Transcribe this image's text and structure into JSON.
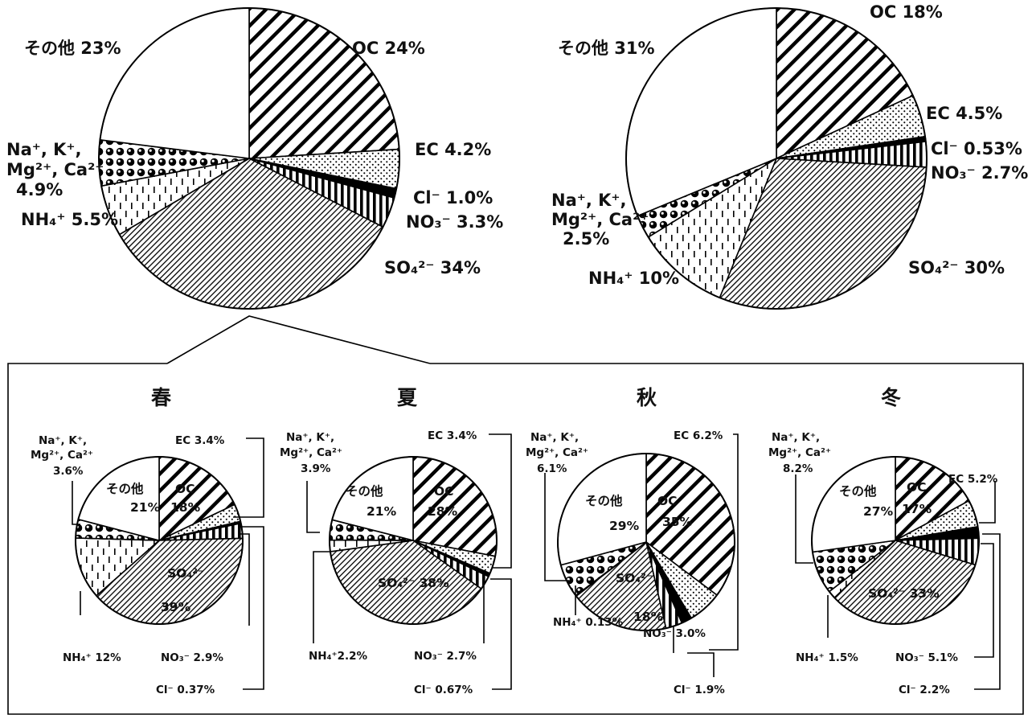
{
  "chart_data": [
    {
      "type": "pie",
      "title": "",
      "slices": [
        {
          "name": "OC",
          "value": 24,
          "label": "OC 24%",
          "pattern": "diag-bold"
        },
        {
          "name": "EC",
          "value": 4.2,
          "label": "EC 4.2%",
          "pattern": "dots"
        },
        {
          "name": "Cl-",
          "value": 1.0,
          "label": "Cl⁻ 1.0%",
          "pattern": "solid"
        },
        {
          "name": "NO3-",
          "value": 3.3,
          "label": "NO₃⁻ 3.3%",
          "pattern": "vlines"
        },
        {
          "name": "SO4 2-",
          "value": 34,
          "label": "SO₄²⁻ 34%",
          "pattern": "diag-fine"
        },
        {
          "name": "NH4+",
          "value": 5.5,
          "label": "NH₄⁺ 5.5%",
          "pattern": "dash-v"
        },
        {
          "name": "Na+, K+, Mg2+, Ca2+",
          "value": 4.9,
          "label": "Na⁺, K⁺, Mg²⁺, Ca²⁺ 4.9%",
          "pattern": "circles"
        },
        {
          "name": "その他",
          "value": 23,
          "label": "その他 23%",
          "pattern": "white"
        }
      ]
    },
    {
      "type": "pie",
      "title": "",
      "slices": [
        {
          "name": "OC",
          "value": 18,
          "label": "OC 18%",
          "pattern": "diag-bold"
        },
        {
          "name": "EC",
          "value": 4.5,
          "label": "EC 4.5%",
          "pattern": "dots"
        },
        {
          "name": "Cl-",
          "value": 0.53,
          "label": "Cl⁻ 0.53%",
          "pattern": "solid"
        },
        {
          "name": "NO3-",
          "value": 2.7,
          "label": "NO₃⁻ 2.7%",
          "pattern": "vlines"
        },
        {
          "name": "SO4 2-",
          "value": 30,
          "label": "SO₄²⁻ 30%",
          "pattern": "diag-fine"
        },
        {
          "name": "NH4+",
          "value": 10,
          "label": "NH₄⁺ 10%",
          "pattern": "dash-v"
        },
        {
          "name": "Na+, K+, Mg2+, Ca2+",
          "value": 2.5,
          "label": "Na⁺, K⁺, Mg²⁺, Ca²⁺ 2.5%",
          "pattern": "circles"
        },
        {
          "name": "その他",
          "value": 31,
          "label": "その他 31%",
          "pattern": "white"
        }
      ]
    },
    {
      "type": "pie",
      "title": "春",
      "slices": [
        {
          "name": "OC",
          "value": 18,
          "label": "OC 18%",
          "pattern": "diag-bold"
        },
        {
          "name": "EC",
          "value": 3.4,
          "label": "EC 3.4%",
          "pattern": "dots"
        },
        {
          "name": "Cl-",
          "value": 0.37,
          "label": "Cl⁻ 0.37%",
          "pattern": "solid"
        },
        {
          "name": "NO3-",
          "value": 2.9,
          "label": "NO₃⁻ 2.9%",
          "pattern": "vlines"
        },
        {
          "name": "SO4 2-",
          "value": 39,
          "label": "SO₄²⁻ 39%",
          "pattern": "diag-fine"
        },
        {
          "name": "NH4+",
          "value": 12,
          "label": "NH₄⁺ 12%",
          "pattern": "dash-v"
        },
        {
          "name": "Na+, K+, Mg2+, Ca2+",
          "value": 3.6,
          "label": "Na⁺, K⁺, Mg²⁺, Ca²⁺ 3.6%",
          "pattern": "circles"
        },
        {
          "name": "その他",
          "value": 21,
          "label": "その他 21%",
          "pattern": "white"
        }
      ]
    },
    {
      "type": "pie",
      "title": "夏",
      "slices": [
        {
          "name": "OC",
          "value": 28,
          "label": "OC 28%",
          "pattern": "diag-bold"
        },
        {
          "name": "EC",
          "value": 3.4,
          "label": "EC 3.4%",
          "pattern": "dots"
        },
        {
          "name": "Cl-",
          "value": 0.67,
          "label": "Cl⁻ 0.67%",
          "pattern": "solid"
        },
        {
          "name": "NO3-",
          "value": 2.7,
          "label": "NO₃⁻ 2.7%",
          "pattern": "vlines"
        },
        {
          "name": "SO4 2-",
          "value": 38,
          "label": "SO₄²⁻ 38%",
          "pattern": "diag-fine"
        },
        {
          "name": "NH4+",
          "value": 2.2,
          "label": "NH₄⁺2.2%",
          "pattern": "dash-v"
        },
        {
          "name": "Na+, K+, Mg2+, Ca2+",
          "value": 3.9,
          "label": "Na⁺, K⁺, Mg²⁺, Ca²⁺ 3.9%",
          "pattern": "circles"
        },
        {
          "name": "その他",
          "value": 21,
          "label": "その他 21%",
          "pattern": "white"
        }
      ]
    },
    {
      "type": "pie",
      "title": "秋",
      "slices": [
        {
          "name": "OC",
          "value": 35,
          "label": "OC 35%",
          "pattern": "diag-bold"
        },
        {
          "name": "EC",
          "value": 6.2,
          "label": "EC 6.2%",
          "pattern": "dots"
        },
        {
          "name": "Cl-",
          "value": 1.9,
          "label": "Cl⁻ 1.9%",
          "pattern": "solid"
        },
        {
          "name": "NO3-",
          "value": 3.0,
          "label": "NO₃⁻ 3.0%",
          "pattern": "vlines"
        },
        {
          "name": "SO4 2-",
          "value": 18,
          "label": "SO₄²⁻ 18%",
          "pattern": "diag-fine"
        },
        {
          "name": "NH4+",
          "value": 0.13,
          "label": "NH₄⁺ 0.13%",
          "pattern": "dash-v"
        },
        {
          "name": "Na+, K+, Mg2+, Ca2+",
          "value": 6.1,
          "label": "Na⁺, K⁺, Mg²⁺, Ca²⁺ 6.1%",
          "pattern": "circles"
        },
        {
          "name": "その他",
          "value": 29,
          "label": "その他 29%",
          "pattern": "white"
        }
      ]
    },
    {
      "type": "pie",
      "title": "冬",
      "slices": [
        {
          "name": "OC",
          "value": 17,
          "label": "OC 17%",
          "pattern": "diag-bold"
        },
        {
          "name": "EC",
          "value": 5.2,
          "label": "EC 5.2%",
          "pattern": "dots"
        },
        {
          "name": "Cl-",
          "value": 2.2,
          "label": "Cl⁻ 2.2%",
          "pattern": "solid"
        },
        {
          "name": "NO3-",
          "value": 5.1,
          "label": "NO₃⁻ 5.1%",
          "pattern": "vlines"
        },
        {
          "name": "SO4 2-",
          "value": 33,
          "label": "SO₄²⁻ 33%",
          "pattern": "diag-fine"
        },
        {
          "name": "NH4+",
          "value": 1.5,
          "label": "NH₄⁺ 1.5%",
          "pattern": "dash-v"
        },
        {
          "name": "Na+, K+, Mg2+, Ca2+",
          "value": 8.2,
          "label": "Na⁺, K⁺, Mg²⁺, Ca²⁺ 8.2%",
          "pattern": "circles"
        },
        {
          "name": "その他",
          "value": 27,
          "label": "その他 27%",
          "pattern": "white"
        }
      ]
    }
  ],
  "labels": {
    "p1": {
      "oc": "OC 24%",
      "ec": "EC 4.2%",
      "cl": "Cl⁻ 1.0%",
      "no3": "NO₃⁻ 3.3%",
      "so4": "SO₄²⁻ 34%",
      "nh4": "NH₄⁺ 5.5%",
      "na_1": "Na⁺, K⁺,",
      "na_2": "Mg²⁺, Ca²⁺",
      "na_val": "4.9%",
      "other": "その他 23%"
    },
    "p2": {
      "oc": "OC 18%",
      "ec": "EC 4.5%",
      "cl": "Cl⁻ 0.53%",
      "no3": "NO₃⁻ 2.7%",
      "so4": "SO₄²⁻ 30%",
      "nh4": "NH₄⁺ 10%",
      "na_1": "Na⁺, K⁺,",
      "na_2": "Mg²⁺, Ca²⁺",
      "na_val": "2.5%",
      "other": "その他 31%"
    },
    "spring": {
      "title": "春",
      "na_1": "Na⁺, K⁺,",
      "na_2": "Mg²⁺, Ca²⁺",
      "na_val": "3.6%",
      "ec": "EC 3.4%",
      "other_1": "その他",
      "other_2": "21%",
      "oc_1": "OC",
      "oc_2": "18%",
      "so4_1": "SO₄²⁻",
      "so4_2": "39%",
      "nh4": "NH₄⁺ 12%",
      "no3": "NO₃⁻ 2.9%",
      "cl": "Cl⁻ 0.37%"
    },
    "summer": {
      "title": "夏",
      "na_1": "Na⁺, K⁺,",
      "na_2": "Mg²⁺, Ca²⁺",
      "na_val": "3.9%",
      "ec": "EC 3.4%",
      "other_1": "その他",
      "other_2": "21%",
      "oc_1": "OC",
      "oc_2": "28%",
      "so4": "SO₄²⁻ 38%",
      "nh4": "NH₄⁺2.2%",
      "no3": "NO₃⁻ 2.7%",
      "cl": "Cl⁻ 0.67%"
    },
    "autumn": {
      "title": "秋",
      "na_1": "Na⁺, K⁺,",
      "na_2": "Mg²⁺, Ca²⁺",
      "na_val": "6.1%",
      "ec": "EC 6.2%",
      "other_1": "その他",
      "other_2": "29%",
      "oc_1": "OC",
      "oc_2": "35%",
      "so4_1": "SO₄²⁻",
      "so4_2": "18%",
      "nh4": "NH₄⁺ 0.13%",
      "no3": "NO₃⁻ 3.0%",
      "cl": "Cl⁻ 1.9%"
    },
    "winter": {
      "title": "冬",
      "na_1": "Na⁺, K⁺,",
      "na_2": "Mg²⁺, Ca²⁺",
      "na_val": "8.2%",
      "ec": "EC 5.2%",
      "other_1": "その他",
      "other_2": "27%",
      "oc_1": "OC",
      "oc_2": "17%",
      "so4": "SO₄²⁻ 33%",
      "nh4": "NH₄⁺ 1.5%",
      "no3": "NO₃⁻ 5.1%",
      "cl": "Cl⁻ 2.2%"
    }
  },
  "colors": {
    "stroke": "#000000",
    "background": "#ffffff",
    "text": "#111111"
  }
}
